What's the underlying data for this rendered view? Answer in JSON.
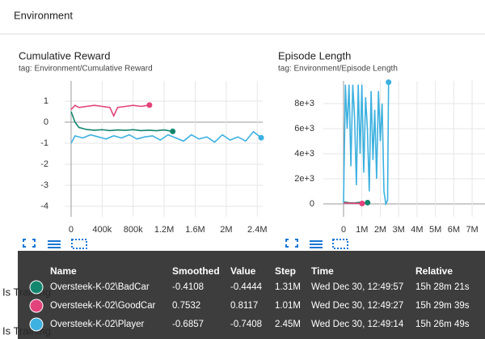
{
  "header": {
    "title": "Environment"
  },
  "chart_data": [
    {
      "type": "line",
      "title": "Cumulative Reward",
      "subtitle": "tag: Environment/Cumulative Reward",
      "grid": true,
      "xlim": [
        -83000,
        2470000
      ],
      "xticks": [
        0,
        {
          "value": 400000,
          "label": "400k"
        },
        {
          "value": 800000,
          "label": "800k"
        },
        {
          "value": 1200000,
          "label": "1.2M"
        },
        {
          "value": 1600000,
          "label": "1.6M"
        },
        {
          "value": 2000000,
          "label": "2M"
        },
        {
          "value": 2400000,
          "label": "2.4M"
        }
      ],
      "ylim": [
        -4.5,
        1.96
      ],
      "yticks": [
        -4,
        -3,
        -2,
        -1,
        0,
        1
      ],
      "series": [
        {
          "name": "Oversteek-K-02\\BadCar",
          "color": "#12866f",
          "x": [
            0,
            50000,
            100000,
            200000,
            300000,
            400000,
            500000,
            600000,
            700000,
            800000,
            900000,
            1000000,
            1100000,
            1200000,
            1310000
          ],
          "values": [
            0.5,
            0.0,
            -0.25,
            -0.35,
            -0.38,
            -0.36,
            -0.4,
            -0.37,
            -0.39,
            -0.36,
            -0.4,
            -0.38,
            -0.41,
            -0.37,
            -0.44
          ]
        },
        {
          "name": "Oversteek-K-02\\GoodCar",
          "color": "#e3437b",
          "x": [
            0,
            50000,
            100000,
            200000,
            300000,
            400000,
            500000,
            550000,
            600000,
            700000,
            800000,
            900000,
            1010000
          ],
          "values": [
            0.6,
            0.8,
            0.7,
            0.75,
            0.8,
            0.75,
            0.7,
            0.3,
            0.7,
            0.75,
            0.8,
            0.75,
            0.81
          ]
        },
        {
          "name": "Oversteek-K-02\\Player",
          "color": "#3db1e0",
          "x": [
            0,
            50000,
            150000,
            250000,
            350000,
            450000,
            550000,
            650000,
            750000,
            850000,
            950000,
            1050000,
            1150000,
            1250000,
            1350000,
            1450000,
            1550000,
            1650000,
            1750000,
            1850000,
            1950000,
            2050000,
            2150000,
            2250000,
            2350000,
            2450000
          ],
          "values": [
            -1.0,
            -0.65,
            -0.75,
            -0.6,
            -0.7,
            -0.8,
            -0.65,
            -0.75,
            -0.6,
            -0.8,
            -0.7,
            -0.65,
            -0.85,
            -0.6,
            -0.75,
            -0.9,
            -0.6,
            -0.8,
            -0.7,
            -0.95,
            -0.6,
            -0.85,
            -0.7,
            -0.9,
            -0.45,
            -0.74
          ]
        }
      ]
    },
    {
      "type": "line",
      "title": "Episode Length",
      "subtitle": "tag: Environment/Episode Length",
      "grid": true,
      "xlim": [
        -1100000,
        7700000
      ],
      "xticks": [
        0,
        {
          "value": 1000000,
          "label": "1M"
        },
        {
          "value": 2000000,
          "label": "2M"
        },
        {
          "value": 3000000,
          "label": "3M"
        },
        {
          "value": 4000000,
          "label": "4M"
        },
        {
          "value": 5000000,
          "label": "5M"
        },
        {
          "value": 6000000,
          "label": "6M"
        },
        {
          "value": 7000000,
          "label": "7M"
        }
      ],
      "ylim": [
        -1032,
        9806
      ],
      "yticks": [
        0,
        {
          "value": 2000,
          "label": "2e+3"
        },
        {
          "value": 4000,
          "label": "4e+3"
        },
        {
          "value": 6000,
          "label": "6e+3"
        },
        {
          "value": 8000,
          "label": "8e+3"
        }
      ],
      "series": [
        {
          "name": "Oversteek-K-02\\BadCar",
          "color": "#12866f",
          "x": [
            0,
            300000,
            600000,
            900000,
            1100000,
            1310000
          ],
          "values": [
            150,
            100,
            80,
            120,
            90,
            100
          ]
        },
        {
          "name": "Oversteek-K-02\\GoodCar",
          "color": "#e3437b",
          "x": [
            0,
            300000,
            600000,
            800000,
            1010000
          ],
          "values": [
            80,
            60,
            50,
            40,
            30
          ]
        },
        {
          "name": "Oversteek-K-02\\Player",
          "color": "#3db1e0",
          "x": [
            0,
            100000,
            200000,
            300000,
            400000,
            500000,
            600000,
            700000,
            800000,
            900000,
            1000000,
            1100000,
            1200000,
            1300000,
            1400000,
            1500000,
            1600000,
            1700000,
            1800000,
            1900000,
            2000000,
            2100000,
            2200000,
            2300000,
            2400000,
            2450000
          ],
          "values": [
            100,
            9500,
            6000,
            9500,
            3000,
            9500,
            7000,
            1500,
            9500,
            4000,
            9500,
            2500,
            8500,
            6000,
            1000,
            9000,
            3500,
            7500,
            2000,
            9000,
            5000,
            8000,
            1000,
            0,
            300,
            9700
          ]
        }
      ]
    }
  ],
  "tooltip": {
    "columns": [
      "Name",
      "Smoothed",
      "Value",
      "Step",
      "Time",
      "Relative"
    ],
    "rows": [
      [
        "Oversteek-K-02\\BadCar",
        "-0.4108",
        "-0.4444",
        "1.31M",
        "Wed Dec 30, 12:49:57",
        "15h 28m 21s"
      ],
      [
        "Oversteek-K-02\\GoodCar",
        "0.7532",
        "0.8117",
        "1.01M",
        "Wed Dec 30, 12:49:27",
        "15h 29m 39s"
      ],
      [
        "Oversteek-K-02\\Player",
        "-0.6857",
        "-0.7408",
        "2.45M",
        "Wed Dec 30, 12:49:14",
        "15h 26m 49s"
      ]
    ]
  },
  "sections": [
    "Is Training",
    "Is Training"
  ]
}
